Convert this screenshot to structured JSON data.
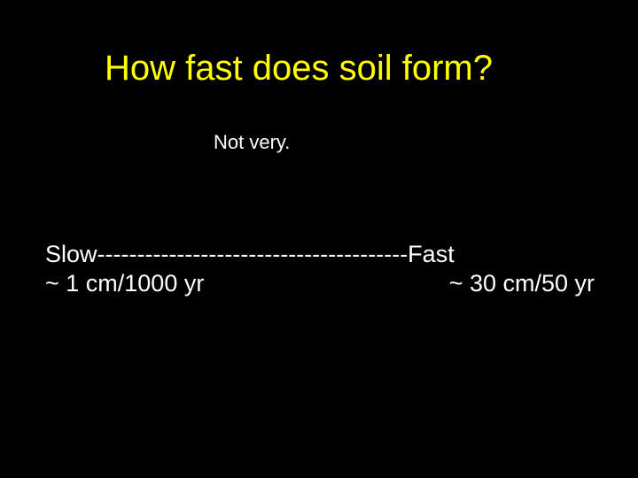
{
  "slide": {
    "title": "How fast does soil form?",
    "subtitle": "Not very.",
    "scale_line": "Slow---------------------------------------Fast",
    "rate_slow": "~ 1 cm/1000 yr",
    "rate_fast": "~ 30 cm/50 yr",
    "background_color": "#000000",
    "title_color": "#ffff00",
    "body_color": "#ffffff",
    "title_fontsize": 40,
    "subtitle_fontsize": 22,
    "body_fontsize": 27,
    "font_family": "Arial"
  }
}
